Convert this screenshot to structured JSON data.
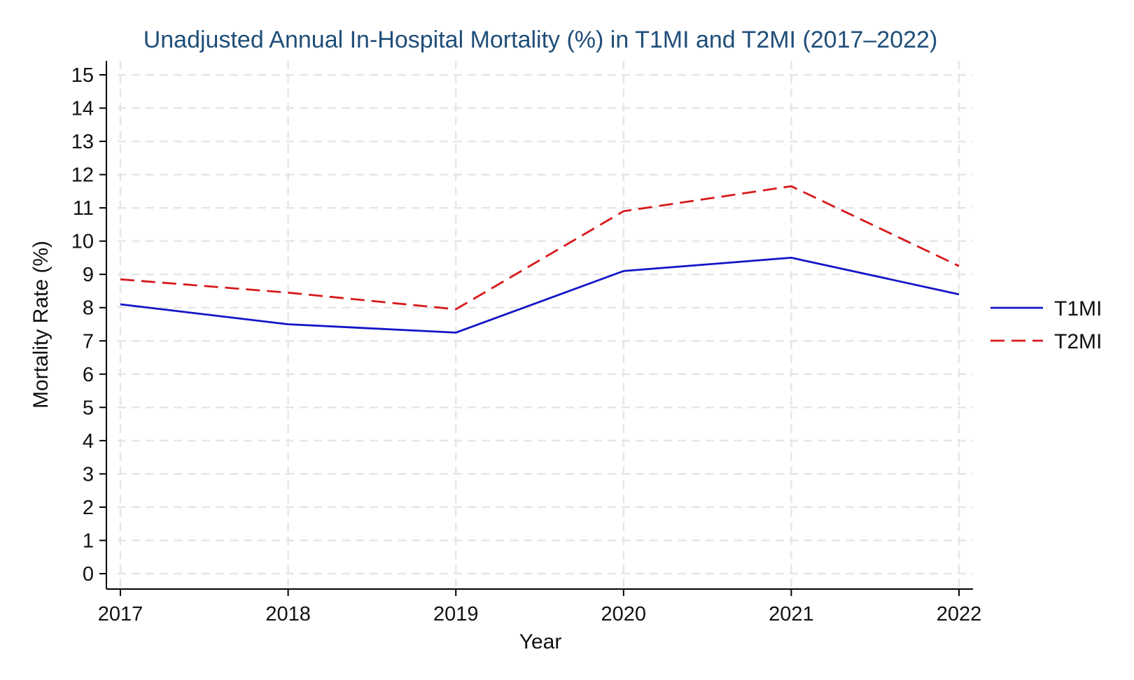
{
  "chart_data": {
    "type": "line",
    "title": "Unadjusted Annual In-Hospital Mortality (%) in T1MI and T2MI (2017–2022)",
    "xlabel": "Year",
    "ylabel": "Mortality Rate (%)",
    "x": [
      "2017",
      "2018",
      "2019",
      "2020",
      "2021",
      "2022"
    ],
    "ylim": [
      0,
      15
    ],
    "yticks": [
      0,
      1,
      2,
      3,
      4,
      5,
      6,
      7,
      8,
      9,
      10,
      11,
      12,
      13,
      14,
      15
    ],
    "grid": true,
    "legend_position": "right",
    "series": [
      {
        "name": "T1MI",
        "color": "#1414c8",
        "style": "solid",
        "values": [
          8.1,
          7.5,
          7.25,
          9.1,
          9.5,
          8.4
        ]
      },
      {
        "name": "T2MI",
        "color": "#d7191c",
        "style": "dashed",
        "values": [
          8.85,
          8.45,
          7.95,
          10.9,
          11.65,
          9.25
        ]
      }
    ]
  }
}
